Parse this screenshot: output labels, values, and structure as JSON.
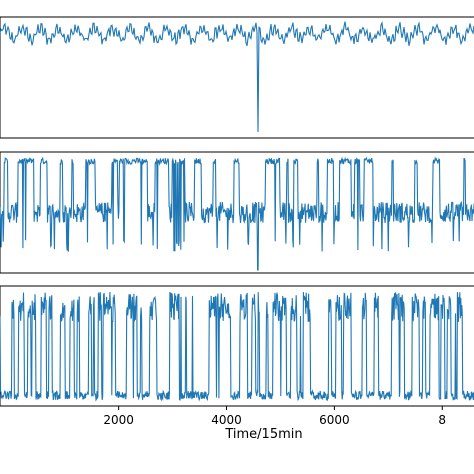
{
  "chart_data": [
    {
      "type": "line",
      "panel": "top",
      "series": [
        {
          "color": "#1f77b4",
          "pattern": "steady high level with small oscillations and one sharp downward spike",
          "x": [
            0,
            1000,
            2000,
            3000,
            4000,
            4575,
            4580,
            4585,
            5000,
            6000,
            7000,
            8000
          ],
          "y": [
            0.85,
            0.88,
            0.86,
            0.87,
            0.85,
            0.86,
            -0.9,
            0.86,
            0.87,
            0.86,
            0.88,
            0.86
          ]
        }
      ],
      "grid": false
    },
    {
      "type": "line",
      "panel": "middle",
      "series": [
        {
          "color": "#1f77b4",
          "pattern": "switching between a high plateau and a middle band with dense transitions and one downward spike",
          "levels": {
            "high": 0.85,
            "mid": 0.0,
            "low": -0.55
          }
        }
      ],
      "grid": false
    },
    {
      "type": "line",
      "panel": "bottom",
      "series": [
        {
          "color": "#1f77b4",
          "pattern": "rapid switching between a low baseline and high peaks",
          "levels": {
            "high": 0.9,
            "low": -0.9
          }
        }
      ],
      "grid": false,
      "xlabel": "Time/15min",
      "xticks": [
        "2000",
        "4000",
        "6000",
        "8"
      ],
      "xlim": [
        -200,
        8700
      ]
    }
  ]
}
